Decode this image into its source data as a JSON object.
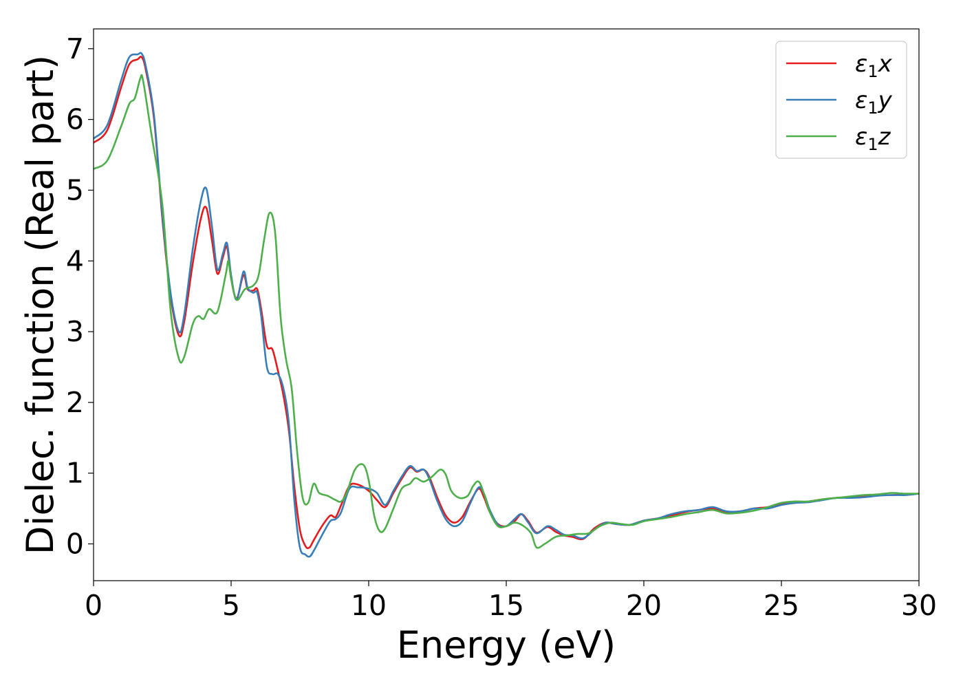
{
  "chart_data": {
    "type": "line",
    "title": "",
    "xlabel": "Energy (eV)",
    "ylabel": "Dielec. function (Real part)",
    "xlim": [
      0,
      30
    ],
    "ylim": [
      -0.52,
      7.28
    ],
    "xticks": [
      "0",
      "5",
      "10",
      "15",
      "20",
      "25",
      "30"
    ],
    "yticks": [
      "0",
      "1",
      "2",
      "3",
      "4",
      "5",
      "6",
      "7"
    ],
    "grid": false,
    "legend_position": "top-right",
    "series": [
      {
        "name": "ε1x",
        "color": "#e41a1c",
        "x": [
          0,
          0.5,
          1.0,
          1.3,
          1.6,
          1.75,
          1.9,
          2.2,
          2.5,
          2.8,
          3.1,
          3.3,
          3.6,
          3.9,
          4.1,
          4.3,
          4.5,
          4.7,
          4.85,
          5.0,
          5.2,
          5.45,
          5.6,
          5.8,
          5.95,
          6.1,
          6.3,
          6.5,
          6.7,
          6.9,
          7.1,
          7.3,
          7.5,
          7.7,
          7.85,
          8.0,
          8.3,
          8.6,
          8.8,
          9.0,
          9.3,
          9.6,
          10.0,
          10.3,
          10.6,
          10.9,
          11.2,
          11.5,
          11.75,
          12.0,
          12.2,
          12.5,
          12.8,
          13.1,
          13.4,
          13.7,
          14.0,
          14.2,
          14.4,
          14.7,
          15.0,
          15.3,
          15.55,
          15.8,
          16.1,
          16.5,
          16.8,
          17.1,
          17.4,
          17.8,
          18.2,
          18.6,
          19.0,
          19.5,
          20.0,
          20.5,
          21.0,
          21.5,
          22.0,
          22.5,
          23.0,
          23.5,
          24.0,
          24.5,
          25.0,
          25.5,
          26.0,
          26.5,
          27.0,
          27.5,
          28.0,
          28.5,
          29.0,
          29.5,
          30.0
        ],
        "y": [
          5.67,
          5.85,
          6.45,
          6.78,
          6.85,
          6.88,
          6.7,
          6.0,
          4.6,
          3.5,
          2.95,
          3.15,
          3.95,
          4.6,
          4.75,
          4.3,
          3.82,
          4.05,
          4.2,
          3.75,
          3.47,
          3.8,
          3.6,
          3.58,
          3.6,
          3.3,
          2.8,
          2.75,
          2.45,
          2.1,
          1.6,
          0.8,
          0.2,
          -0.03,
          -0.05,
          0.05,
          0.25,
          0.4,
          0.38,
          0.55,
          0.82,
          0.84,
          0.75,
          0.62,
          0.52,
          0.72,
          0.92,
          1.08,
          1.02,
          1.05,
          0.95,
          0.65,
          0.4,
          0.3,
          0.38,
          0.6,
          0.78,
          0.65,
          0.45,
          0.28,
          0.25,
          0.32,
          0.42,
          0.32,
          0.16,
          0.24,
          0.17,
          0.12,
          0.1,
          0.07,
          0.22,
          0.3,
          0.28,
          0.27,
          0.33,
          0.36,
          0.4,
          0.45,
          0.48,
          0.5,
          0.45,
          0.46,
          0.5,
          0.52,
          0.56,
          0.58,
          0.6,
          0.63,
          0.65,
          0.66,
          0.67,
          0.69,
          0.69,
          0.7,
          0.71
        ]
      },
      {
        "name": "ε1y",
        "color": "#377eb8",
        "x": [
          0,
          0.5,
          1.0,
          1.3,
          1.6,
          1.75,
          1.9,
          2.2,
          2.5,
          2.8,
          3.1,
          3.3,
          3.6,
          3.9,
          4.1,
          4.3,
          4.5,
          4.7,
          4.85,
          5.0,
          5.2,
          5.45,
          5.6,
          5.8,
          5.95,
          6.1,
          6.3,
          6.5,
          6.7,
          6.9,
          7.1,
          7.3,
          7.5,
          7.7,
          7.85,
          8.0,
          8.3,
          8.6,
          8.8,
          9.0,
          9.3,
          9.6,
          10.0,
          10.3,
          10.6,
          10.9,
          11.2,
          11.5,
          11.75,
          12.0,
          12.2,
          12.5,
          12.8,
          13.1,
          13.4,
          13.7,
          14.0,
          14.2,
          14.4,
          14.7,
          15.0,
          15.3,
          15.55,
          15.8,
          16.1,
          16.5,
          16.8,
          17.1,
          17.4,
          17.8,
          18.2,
          18.6,
          19.0,
          19.5,
          20.0,
          20.5,
          21.0,
          21.5,
          22.0,
          22.5,
          23.0,
          23.5,
          24.0,
          24.5,
          25.0,
          25.5,
          26.0,
          26.5,
          27.0,
          27.5,
          28.0,
          28.5,
          29.0,
          29.5,
          30.0
        ],
        "y": [
          5.73,
          5.92,
          6.55,
          6.88,
          6.92,
          6.93,
          6.75,
          6.05,
          4.65,
          3.55,
          3.0,
          3.25,
          4.15,
          4.85,
          5.02,
          4.5,
          3.88,
          4.1,
          4.25,
          3.8,
          3.45,
          3.85,
          3.62,
          3.55,
          3.55,
          3.2,
          2.5,
          2.4,
          2.4,
          2.2,
          1.7,
          0.6,
          -0.05,
          -0.15,
          -0.18,
          -0.1,
          0.12,
          0.32,
          0.35,
          0.45,
          0.78,
          0.8,
          0.78,
          0.72,
          0.55,
          0.75,
          0.95,
          1.1,
          1.03,
          1.05,
          0.92,
          0.6,
          0.35,
          0.25,
          0.32,
          0.58,
          0.8,
          0.7,
          0.48,
          0.27,
          0.25,
          0.35,
          0.42,
          0.3,
          0.15,
          0.25,
          0.2,
          0.13,
          0.12,
          0.08,
          0.2,
          0.3,
          0.28,
          0.27,
          0.33,
          0.36,
          0.42,
          0.46,
          0.48,
          0.52,
          0.46,
          0.46,
          0.5,
          0.5,
          0.55,
          0.58,
          0.59,
          0.62,
          0.65,
          0.65,
          0.66,
          0.68,
          0.69,
          0.69,
          0.71
        ]
      },
      {
        "name": "ε1z",
        "color": "#4daf4a",
        "x": [
          0,
          0.5,
          1.0,
          1.3,
          1.5,
          1.7,
          1.8,
          2.1,
          2.5,
          2.8,
          3.1,
          3.3,
          3.6,
          3.8,
          4.0,
          4.2,
          4.5,
          4.8,
          4.9,
          5.0,
          5.2,
          5.5,
          5.8,
          6.0,
          6.2,
          6.4,
          6.6,
          6.8,
          7.0,
          7.2,
          7.4,
          7.6,
          7.8,
          8.0,
          8.2,
          8.5,
          8.8,
          9.0,
          9.2,
          9.5,
          9.8,
          10.0,
          10.2,
          10.4,
          10.6,
          10.9,
          11.2,
          11.5,
          11.7,
          12.0,
          12.3,
          12.6,
          12.8,
          13.0,
          13.3,
          13.6,
          13.8,
          14.0,
          14.2,
          14.4,
          14.7,
          15.0,
          15.3,
          15.6,
          15.9,
          16.1,
          16.4,
          16.8,
          17.2,
          17.6,
          18.0,
          18.4,
          18.8,
          19.2,
          19.6,
          20.0,
          20.5,
          21.0,
          21.5,
          22.0,
          22.5,
          23.0,
          23.5,
          24.0,
          24.5,
          25.0,
          25.5,
          26.0,
          26.5,
          27.0,
          27.5,
          28.0,
          28.5,
          29.0,
          29.5,
          30.0
        ],
        "y": [
          5.3,
          5.42,
          5.9,
          6.22,
          6.3,
          6.58,
          6.55,
          5.8,
          4.8,
          3.3,
          2.62,
          2.65,
          3.1,
          3.22,
          3.18,
          3.32,
          3.28,
          3.8,
          4.0,
          3.75,
          3.45,
          3.6,
          3.65,
          3.8,
          4.3,
          4.68,
          4.4,
          3.2,
          2.6,
          2.2,
          1.3,
          0.65,
          0.58,
          0.85,
          0.72,
          0.68,
          0.62,
          0.6,
          0.72,
          1.05,
          1.12,
          0.9,
          0.4,
          0.18,
          0.22,
          0.5,
          0.78,
          0.85,
          0.93,
          0.88,
          0.95,
          1.05,
          0.98,
          0.75,
          0.65,
          0.68,
          0.82,
          0.88,
          0.7,
          0.45,
          0.25,
          0.25,
          0.3,
          0.26,
          0.15,
          -0.05,
          0.0,
          0.1,
          0.12,
          0.14,
          0.15,
          0.25,
          0.3,
          0.28,
          0.27,
          0.32,
          0.35,
          0.38,
          0.42,
          0.45,
          0.48,
          0.43,
          0.44,
          0.47,
          0.52,
          0.58,
          0.6,
          0.6,
          0.63,
          0.65,
          0.67,
          0.69,
          0.7,
          0.72,
          0.71,
          0.71
        ]
      }
    ]
  }
}
